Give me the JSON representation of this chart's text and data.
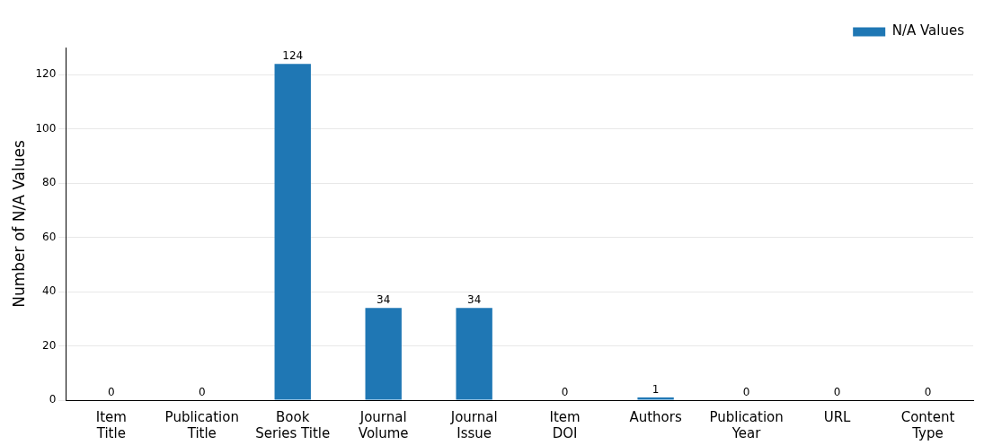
{
  "chart_data": {
    "type": "bar",
    "ylabel": "Number of N/A Values",
    "categories": [
      "Item\nTitle",
      "Publication\nTitle",
      "Book\nSeries Title",
      "Journal\nVolume",
      "Journal\nIssue",
      "Item\nDOI",
      "Authors",
      "Publication\nYear",
      "URL",
      "Content\nType"
    ],
    "series": [
      {
        "name": "N/A Values",
        "color": "#1f77b4",
        "values": [
          0,
          0,
          124,
          34,
          34,
          0,
          1,
          0,
          0,
          0
        ]
      }
    ],
    "ylim": [
      0,
      130
    ],
    "yticks": [
      0,
      20,
      40,
      60,
      80,
      100,
      120
    ],
    "grid": "y",
    "legend": "top right",
    "data_labels": true
  }
}
